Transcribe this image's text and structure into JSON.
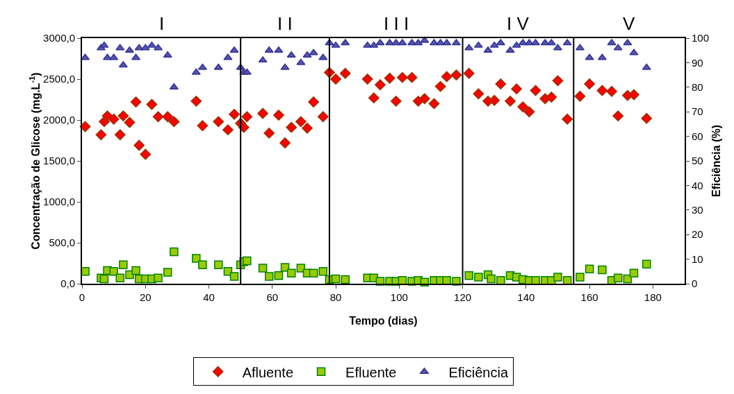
{
  "chart_data": {
    "type": "scatter",
    "xlabel": "Tempo (dias)",
    "ylabel": "Concentração de Glicose (mg.L$^{-1}$)",
    "y2label": "Eficiência (%)",
    "xlim": [
      0,
      190
    ],
    "xticks": [
      0,
      20,
      40,
      60,
      80,
      100,
      120,
      140,
      160,
      180
    ],
    "ylim": [
      0,
      3000
    ],
    "yticks": [
      {
        "value": 0,
        "label": "0,0"
      },
      {
        "value": 500,
        "label": "500,0"
      },
      {
        "value": 1000,
        "label": "1000,0"
      },
      {
        "value": 1500,
        "label": "1500,0"
      },
      {
        "value": 2000,
        "label": "2000,0"
      },
      {
        "value": 2500,
        "label": "2500,0"
      },
      {
        "value": 3000,
        "label": "3000,0"
      }
    ],
    "y2lim": [
      0,
      100
    ],
    "y2ticks": [
      0,
      10,
      20,
      30,
      40,
      50,
      60,
      70,
      80,
      90,
      100
    ],
    "grid": false,
    "legend": "bottom",
    "ref_lines": [
      {
        "axis": "x",
        "value": 50,
        "color": "#000000"
      },
      {
        "axis": "x",
        "value": 78,
        "color": "#000000"
      },
      {
        "axis": "x",
        "value": 120,
        "color": "#000000"
      },
      {
        "axis": "x",
        "value": 155,
        "color": "#000000"
      }
    ],
    "annotations": [
      "I",
      "I I",
      "I I I",
      "I V",
      "V"
    ],
    "series": [
      {
        "name": "Afluente",
        "color": "#ff0000",
        "marker": "diamond",
        "x": [
          1,
          6,
          7,
          8,
          10,
          12,
          13,
          15,
          17,
          18,
          20,
          22,
          24,
          27,
          29,
          36,
          38,
          43,
          46,
          48,
          50,
          51,
          52,
          57,
          59,
          62,
          64,
          66,
          69,
          71,
          73,
          76,
          78,
          80,
          83,
          90,
          92,
          94,
          97,
          99,
          101,
          104,
          106,
          108,
          111,
          113,
          115,
          118,
          122,
          125,
          128,
          130,
          132,
          135,
          137,
          139,
          141,
          143,
          146,
          148,
          150,
          153,
          157,
          160,
          164,
          167,
          169,
          172,
          174,
          178
        ],
        "values": [
          1920,
          1820,
          1980,
          2050,
          2010,
          1820,
          2050,
          1970,
          2220,
          1690,
          1580,
          2190,
          2040,
          2040,
          1980,
          2230,
          1930,
          1980,
          1880,
          2070,
          1960,
          1910,
          2040,
          2080,
          1840,
          2060,
          1720,
          1910,
          1980,
          1900,
          2220,
          2040,
          2580,
          2500,
          2570,
          2500,
          2270,
          2430,
          2510,
          2230,
          2520,
          2520,
          2230,
          2260,
          2200,
          2410,
          2530,
          2550,
          2570,
          2320,
          2230,
          2240,
          2440,
          2230,
          2380,
          2160,
          2100,
          2360,
          2260,
          2280,
          2480,
          2010,
          2290,
          2440,
          2360,
          2350,
          2050,
          2300,
          2310,
          2020
        ]
      },
      {
        "name": "Efluente",
        "color": "#99cc00",
        "marker": "square",
        "x": [
          1,
          6,
          7,
          8,
          10,
          12,
          13,
          15,
          17,
          18,
          20,
          22,
          24,
          27,
          29,
          36,
          38,
          43,
          46,
          48,
          50,
          51,
          52,
          57,
          59,
          62,
          64,
          66,
          69,
          71,
          73,
          76,
          78,
          80,
          83,
          90,
          92,
          94,
          97,
          99,
          101,
          104,
          106,
          108,
          111,
          113,
          115,
          118,
          122,
          125,
          128,
          129,
          132,
          135,
          137,
          139,
          141,
          143,
          146,
          148,
          150,
          153,
          157,
          160,
          164,
          167,
          169,
          172,
          174,
          178
        ],
        "values": [
          150,
          70,
          60,
          160,
          150,
          70,
          230,
          110,
          160,
          60,
          60,
          60,
          70,
          140,
          390,
          310,
          230,
          230,
          150,
          90,
          230,
          270,
          280,
          190,
          90,
          100,
          200,
          130,
          190,
          130,
          130,
          150,
          50,
          60,
          50,
          70,
          70,
          30,
          30,
          30,
          40,
          30,
          40,
          20,
          40,
          40,
          40,
          30,
          100,
          80,
          110,
          60,
          40,
          100,
          80,
          50,
          40,
          40,
          40,
          40,
          80,
          40,
          80,
          180,
          170,
          40,
          70,
          60,
          130,
          240
        ]
      },
      {
        "name": "Eficiência",
        "color": "#5555aa",
        "marker": "triangle",
        "axis": "y2",
        "x": [
          1,
          6,
          7,
          8,
          10,
          12,
          13,
          15,
          17,
          18,
          20,
          22,
          24,
          27,
          29,
          36,
          38,
          43,
          46,
          48,
          50,
          51,
          52,
          57,
          59,
          62,
          64,
          66,
          69,
          71,
          73,
          76,
          78,
          80,
          83,
          90,
          92,
          94,
          97,
          99,
          101,
          104,
          106,
          108,
          111,
          113,
          115,
          118,
          122,
          125,
          128,
          130,
          132,
          135,
          137,
          139,
          141,
          143,
          146,
          148,
          150,
          153,
          157,
          160,
          164,
          167,
          169,
          172,
          174,
          178
        ],
        "values": [
          92,
          96,
          97,
          92,
          92,
          96,
          89,
          95,
          92,
          96,
          96,
          97,
          96,
          93,
          80,
          86,
          88,
          88,
          92,
          95,
          88,
          86,
          86,
          91,
          95,
          95,
          88,
          93,
          90,
          93,
          94,
          92,
          98,
          97,
          98,
          97,
          97,
          98,
          98,
          98,
          98,
          98,
          98,
          99,
          98,
          98,
          98,
          98,
          96,
          97,
          95,
          97,
          98,
          95,
          97,
          98,
          98,
          98,
          98,
          98,
          96,
          98,
          96,
          92,
          92,
          98,
          96,
          98,
          94,
          88
        ]
      }
    ]
  }
}
